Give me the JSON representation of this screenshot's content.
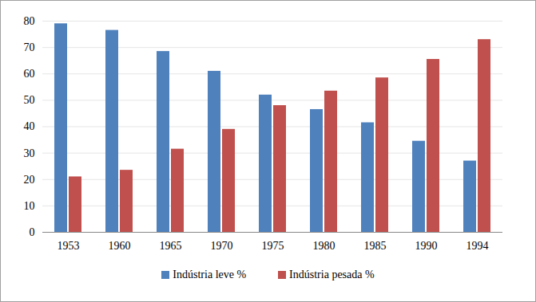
{
  "chart_data": {
    "type": "bar",
    "categories": [
      "1953",
      "1960",
      "1965",
      "1970",
      "1975",
      "1980",
      "1985",
      "1990",
      "1994"
    ],
    "series": [
      {
        "name": "Indústria leve %",
        "color": "#4f81bd",
        "values": [
          79,
          76.5,
          68.5,
          61,
          52,
          46.5,
          41.5,
          34.5,
          27
        ]
      },
      {
        "name": "Indústria pesada %",
        "color": "#c0504d",
        "values": [
          21,
          23.5,
          31.5,
          39,
          48,
          53.5,
          58.5,
          65.5,
          73
        ]
      }
    ],
    "ylim": [
      0,
      80
    ],
    "yticks": [
      0,
      10,
      20,
      30,
      40,
      50,
      60,
      70,
      80
    ],
    "grid": true,
    "legend": "bottom"
  }
}
